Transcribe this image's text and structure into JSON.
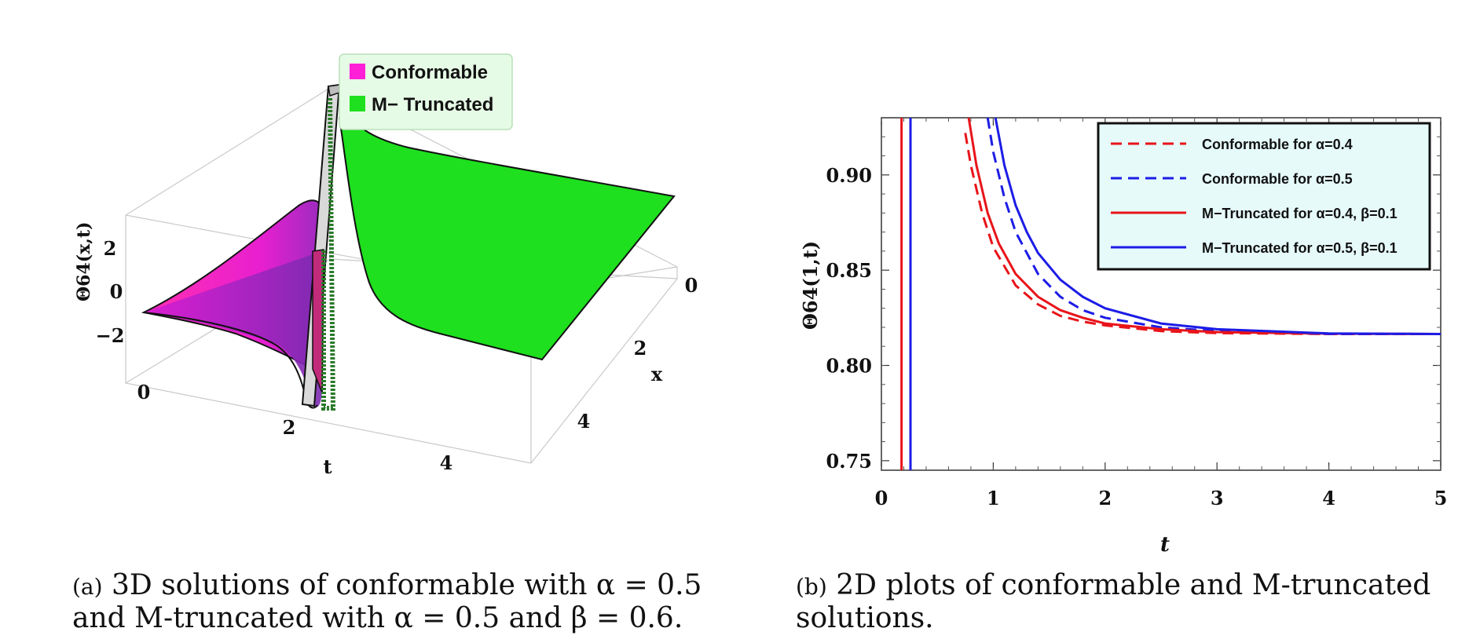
{
  "chart_data": [
    {
      "type": "surface3d",
      "panel": "a",
      "caption_tag": "(a)",
      "caption_text": "3D solutions of conformable with α = 0.5 and M-truncated with α = 0.5 and β = 0.6.",
      "zlabel": "Θ64(x,t)",
      "xlabel": "x",
      "tlabel": "t",
      "z_ticks": [
        "2",
        "0",
        "−2"
      ],
      "x_ticks": [
        "0",
        "2",
        "4"
      ],
      "t_ticks": [
        "0",
        "2",
        "4"
      ],
      "legend": [
        {
          "label": "Conformable",
          "color": "#ff1fd6"
        },
        {
          "label": "M− Truncated",
          "color": "#1ee01e"
        }
      ]
    },
    {
      "type": "line",
      "panel": "b",
      "caption_tag": "(b)",
      "caption_text": "2D plots of conformable and M-truncated solutions.",
      "xlabel": "t",
      "ylabel": "Θ64(1,t)",
      "xlim": [
        0,
        5
      ],
      "ylim": [
        0.745,
        0.93
      ],
      "x_ticks": [
        0,
        1,
        2,
        3,
        4,
        5
      ],
      "y_ticks": [
        0.75,
        0.8,
        0.85,
        0.9
      ],
      "y_tick_labels": [
        "0.75",
        "0.80",
        "0.85",
        "0.90"
      ],
      "legend_position": "top-right",
      "series": [
        {
          "name": "Conformable for α=0.4",
          "color": "#e8141a",
          "dash": true,
          "x": [
            0.75,
            0.8,
            0.9,
            1.0,
            1.2,
            1.4,
            1.6,
            1.8,
            2.0,
            2.5,
            3.0,
            4.0,
            5.0
          ],
          "y": [
            0.922,
            0.905,
            0.88,
            0.862,
            0.842,
            0.832,
            0.826,
            0.823,
            0.821,
            0.818,
            0.817,
            0.8165,
            0.8165
          ]
        },
        {
          "name": "Conformable for α=0.5",
          "color": "#1c1ce6",
          "dash": true,
          "x": [
            0.95,
            1.0,
            1.1,
            1.2,
            1.4,
            1.6,
            1.8,
            2.0,
            2.5,
            3.0,
            4.0,
            5.0
          ],
          "y": [
            0.93,
            0.912,
            0.888,
            0.87,
            0.848,
            0.836,
            0.829,
            0.825,
            0.82,
            0.818,
            0.8165,
            0.8165
          ]
        },
        {
          "name": "M−Truncated for α=0.4, β=0.1",
          "color": "#e8141a",
          "dash": false,
          "x": [
            0.78,
            0.85,
            0.95,
            1.05,
            1.2,
            1.4,
            1.6,
            1.8,
            2.0,
            2.5,
            3.0,
            4.0,
            5.0
          ],
          "y": [
            0.93,
            0.905,
            0.88,
            0.864,
            0.848,
            0.836,
            0.829,
            0.825,
            0.822,
            0.819,
            0.8175,
            0.8167,
            0.8165
          ]
        },
        {
          "name": "M−Truncated for α=0.5, β=0.1",
          "color": "#1c1ce6",
          "dash": false,
          "x": [
            1.02,
            1.1,
            1.2,
            1.3,
            1.4,
            1.6,
            1.8,
            2.0,
            2.5,
            3.0,
            4.0,
            5.0
          ],
          "y": [
            0.93,
            0.905,
            0.884,
            0.87,
            0.859,
            0.845,
            0.836,
            0.83,
            0.822,
            0.819,
            0.8168,
            0.8165
          ]
        }
      ],
      "vertical_lines": [
        {
          "x": 0.18,
          "color": "#e8141a"
        },
        {
          "x": 0.26,
          "color": "#1c1ce6"
        }
      ]
    }
  ]
}
